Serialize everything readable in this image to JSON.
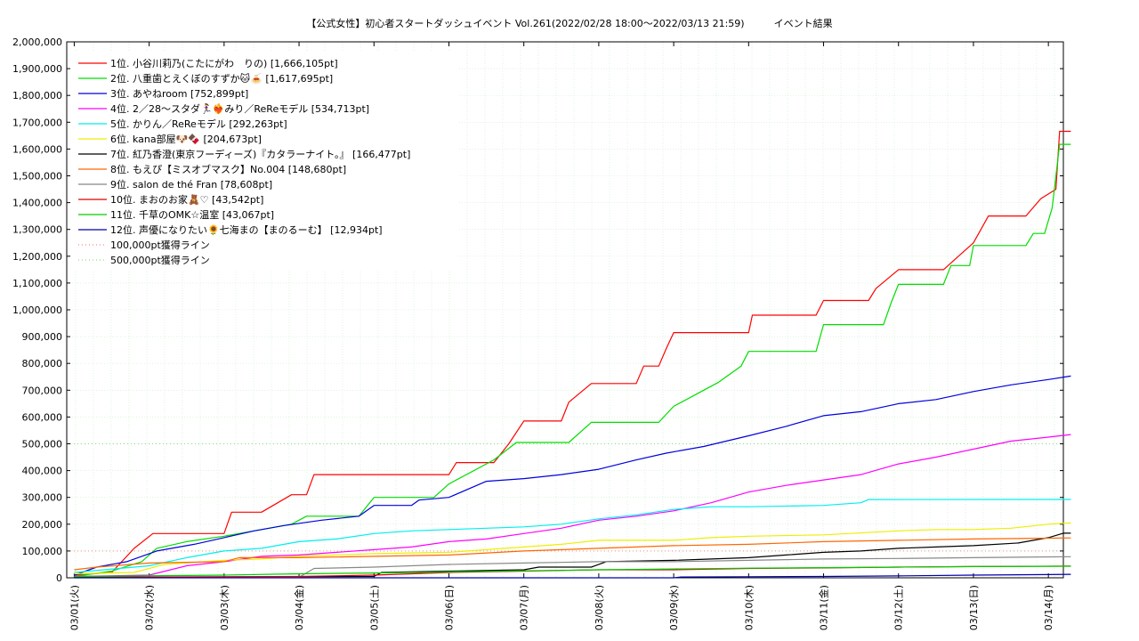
{
  "chart_data": {
    "type": "line",
    "title": "【公式女性】初心者スタートダッシュイベント Vol.261(2022/02/28 18:00～2022/03/13 21:59)　　　イベント結果",
    "ylim": [
      0,
      2000000
    ],
    "xlim": [
      "03/01",
      "03/14"
    ],
    "y_ticks": [
      "0",
      "100,000",
      "200,000",
      "300,000",
      "400,000",
      "500,000",
      "600,000",
      "700,000",
      "800,000",
      "900,000",
      "1,000,000",
      "1,100,000",
      "1,200,000",
      "1,300,000",
      "1,400,000",
      "1,500,000",
      "1,600,000",
      "1,700,000",
      "1,800,000",
      "1,900,000",
      "2,000,000"
    ],
    "x_ticks": [
      "03/01(火)",
      "03/02(水)",
      "03/03(木)",
      "03/04(金)",
      "03/05(土)",
      "03/06(日)",
      "03/07(月)",
      "03/08(火)",
      "03/09(水)",
      "03/10(木)",
      "03/11(金)",
      "03/12(土)",
      "03/13(日)",
      "03/14(月)"
    ],
    "grid": true,
    "legend_position": "top-left",
    "series": [
      {
        "name": "1位. 小谷川莉乃(こたにがわ　りの) [1,666,105pt]",
        "color": "#ff0000",
        "points": [
          [
            0,
            10000
          ],
          [
            0.5,
            20000
          ],
          [
            0.8,
            110000
          ],
          [
            1.05,
            165000
          ],
          [
            1.5,
            165000
          ],
          [
            2.0,
            165000
          ],
          [
            2.1,
            245000
          ],
          [
            2.5,
            245000
          ],
          [
            2.9,
            310000
          ],
          [
            3.1,
            310000
          ],
          [
            3.2,
            385000
          ],
          [
            4.0,
            385000
          ],
          [
            5.0,
            385000
          ],
          [
            5.1,
            430000
          ],
          [
            5.6,
            430000
          ],
          [
            5.8,
            500000
          ],
          [
            6.0,
            585000
          ],
          [
            6.5,
            585000
          ],
          [
            6.6,
            655000
          ],
          [
            6.9,
            725000
          ],
          [
            7.5,
            725000
          ],
          [
            7.6,
            790000
          ],
          [
            7.8,
            790000
          ],
          [
            7.9,
            855000
          ],
          [
            8.0,
            915000
          ],
          [
            9.0,
            915000
          ],
          [
            9.05,
            980000
          ],
          [
            9.9,
            980000
          ],
          [
            10.0,
            1035000
          ],
          [
            10.6,
            1035000
          ],
          [
            10.7,
            1080000
          ],
          [
            11.0,
            1150000
          ],
          [
            11.6,
            1150000
          ],
          [
            11.8,
            1200000
          ],
          [
            12.0,
            1250000
          ],
          [
            12.2,
            1350000
          ],
          [
            12.7,
            1350000
          ],
          [
            12.9,
            1415000
          ],
          [
            13.1,
            1450000
          ],
          [
            13.15,
            1666105
          ],
          [
            13.3,
            1666105
          ]
        ]
      },
      {
        "name": "2位. 八重歯とえくぼのすずか🐱🍝 [1,617,695pt]",
        "color": "#00dd00",
        "points": [
          [
            0,
            5000
          ],
          [
            0.5,
            25000
          ],
          [
            0.9,
            60000
          ],
          [
            1.1,
            110000
          ],
          [
            1.5,
            135000
          ],
          [
            2.0,
            155000
          ],
          [
            2.4,
            175000
          ],
          [
            2.9,
            200000
          ],
          [
            3.1,
            230000
          ],
          [
            3.8,
            230000
          ],
          [
            4.0,
            300000
          ],
          [
            4.8,
            300000
          ],
          [
            5.0,
            350000
          ],
          [
            5.6,
            440000
          ],
          [
            5.9,
            505000
          ],
          [
            6.6,
            505000
          ],
          [
            6.9,
            580000
          ],
          [
            7.8,
            580000
          ],
          [
            8.0,
            640000
          ],
          [
            8.4,
            700000
          ],
          [
            8.6,
            730000
          ],
          [
            8.9,
            790000
          ],
          [
            9.0,
            845000
          ],
          [
            9.9,
            845000
          ],
          [
            10.0,
            945000
          ],
          [
            10.8,
            945000
          ],
          [
            10.9,
            1025000
          ],
          [
            11.0,
            1095000
          ],
          [
            11.6,
            1095000
          ],
          [
            11.7,
            1165000
          ],
          [
            11.95,
            1165000
          ],
          [
            12.0,
            1240000
          ],
          [
            12.7,
            1240000
          ],
          [
            12.8,
            1285000
          ],
          [
            12.95,
            1285000
          ],
          [
            13.05,
            1380000
          ],
          [
            13.15,
            1617695
          ],
          [
            13.3,
            1617695
          ]
        ]
      },
      {
        "name": "3位. あやねroom [752,899pt]",
        "color": "#0000dd",
        "points": [
          [
            0,
            10000
          ],
          [
            0.3,
            40000
          ],
          [
            0.7,
            60000
          ],
          [
            1.1,
            100000
          ],
          [
            1.6,
            125000
          ],
          [
            2.0,
            150000
          ],
          [
            2.4,
            175000
          ],
          [
            2.8,
            195000
          ],
          [
            3.3,
            215000
          ],
          [
            3.8,
            230000
          ],
          [
            4.0,
            270000
          ],
          [
            4.5,
            270000
          ],
          [
            4.6,
            290000
          ],
          [
            5.0,
            300000
          ],
          [
            5.5,
            360000
          ],
          [
            6.0,
            370000
          ],
          [
            6.5,
            385000
          ],
          [
            7.0,
            405000
          ],
          [
            7.5,
            440000
          ],
          [
            7.9,
            465000
          ],
          [
            8.4,
            490000
          ],
          [
            9.0,
            530000
          ],
          [
            9.5,
            565000
          ],
          [
            10.0,
            605000
          ],
          [
            10.5,
            620000
          ],
          [
            11.0,
            650000
          ],
          [
            11.5,
            665000
          ],
          [
            12.0,
            695000
          ],
          [
            12.5,
            720000
          ],
          [
            13.0,
            740000
          ],
          [
            13.3,
            752899
          ]
        ]
      },
      {
        "name": "4位. 2／28〜スタダ🏃‍♀️❤️‍🔥みり／ReReモデル [534,713pt]",
        "color": "#ff00ff",
        "points": [
          [
            0,
            5000
          ],
          [
            1.0,
            10000
          ],
          [
            1.5,
            45000
          ],
          [
            2.0,
            60000
          ],
          [
            2.5,
            80000
          ],
          [
            3.0,
            85000
          ],
          [
            3.5,
            95000
          ],
          [
            4.0,
            105000
          ],
          [
            4.5,
            115000
          ],
          [
            5.0,
            135000
          ],
          [
            5.5,
            145000
          ],
          [
            6.0,
            165000
          ],
          [
            6.5,
            185000
          ],
          [
            7.0,
            215000
          ],
          [
            7.5,
            230000
          ],
          [
            8.0,
            250000
          ],
          [
            8.5,
            280000
          ],
          [
            9.0,
            320000
          ],
          [
            9.5,
            345000
          ],
          [
            10.0,
            365000
          ],
          [
            10.5,
            385000
          ],
          [
            11.0,
            425000
          ],
          [
            11.5,
            450000
          ],
          [
            12.0,
            480000
          ],
          [
            12.5,
            510000
          ],
          [
            13.0,
            525000
          ],
          [
            13.3,
            534713
          ]
        ]
      },
      {
        "name": "5位. かりん／ReReモデル [292,263pt]",
        "color": "#00eeee",
        "points": [
          [
            0,
            20000
          ],
          [
            0.6,
            35000
          ],
          [
            1.0,
            45000
          ],
          [
            1.5,
            75000
          ],
          [
            2.0,
            100000
          ],
          [
            2.5,
            110000
          ],
          [
            3.0,
            135000
          ],
          [
            3.5,
            145000
          ],
          [
            4.0,
            165000
          ],
          [
            4.5,
            175000
          ],
          [
            5.0,
            180000
          ],
          [
            5.5,
            185000
          ],
          [
            6.0,
            190000
          ],
          [
            6.5,
            200000
          ],
          [
            7.0,
            220000
          ],
          [
            7.5,
            235000
          ],
          [
            8.0,
            255000
          ],
          [
            8.5,
            265000
          ],
          [
            9.0,
            265000
          ],
          [
            10.0,
            270000
          ],
          [
            10.5,
            280000
          ],
          [
            10.6,
            292000
          ],
          [
            13.3,
            292263
          ]
        ]
      },
      {
        "name": "6位. kana部屋🐶🍫 [204,673pt]",
        "color": "#eeee00",
        "points": [
          [
            0,
            15000
          ],
          [
            0.8,
            20000
          ],
          [
            1.2,
            50000
          ],
          [
            2.0,
            65000
          ],
          [
            2.5,
            70000
          ],
          [
            3.0,
            80000
          ],
          [
            3.5,
            85000
          ],
          [
            4.0,
            90000
          ],
          [
            5.0,
            95000
          ],
          [
            5.5,
            105000
          ],
          [
            6.0,
            115000
          ],
          [
            6.5,
            125000
          ],
          [
            7.0,
            140000
          ],
          [
            8.0,
            140000
          ],
          [
            8.5,
            150000
          ],
          [
            9.0,
            155000
          ],
          [
            10.0,
            160000
          ],
          [
            11.0,
            175000
          ],
          [
            11.5,
            180000
          ],
          [
            12.0,
            180000
          ],
          [
            12.5,
            185000
          ],
          [
            13.0,
            200000
          ],
          [
            13.3,
            204673
          ]
        ]
      },
      {
        "name": "7位. 紅乃香澄(東京フーディーズ)『カタラーナイト。』 [166,477pt]",
        "color": "#000000",
        "points": [
          [
            0,
            2000
          ],
          [
            4.0,
            5000
          ],
          [
            4.1,
            20000
          ],
          [
            5.0,
            25000
          ],
          [
            6.0,
            30000
          ],
          [
            6.2,
            40000
          ],
          [
            6.9,
            40000
          ],
          [
            7.1,
            60000
          ],
          [
            8.0,
            65000
          ],
          [
            9.0,
            75000
          ],
          [
            9.5,
            85000
          ],
          [
            10.0,
            95000
          ],
          [
            10.5,
            100000
          ],
          [
            11.0,
            110000
          ],
          [
            11.5,
            115000
          ],
          [
            12.0,
            120000
          ],
          [
            12.6,
            130000
          ],
          [
            13.0,
            150000
          ],
          [
            13.2,
            166477
          ],
          [
            13.3,
            166477
          ]
        ]
      },
      {
        "name": "8位. もえぴ【ミスオブマスク】No.004 [148,680pt]",
        "color": "#ff6600",
        "points": [
          [
            0,
            30000
          ],
          [
            0.3,
            40000
          ],
          [
            1.0,
            55000
          ],
          [
            2.0,
            60000
          ],
          [
            2.2,
            75000
          ],
          [
            3.0,
            75000
          ],
          [
            4.0,
            80000
          ],
          [
            5.0,
            85000
          ],
          [
            6.0,
            100000
          ],
          [
            7.0,
            110000
          ],
          [
            8.0,
            120000
          ],
          [
            9.0,
            125000
          ],
          [
            10.0,
            135000
          ],
          [
            11.0,
            140000
          ],
          [
            12.0,
            145000
          ],
          [
            13.0,
            148000
          ],
          [
            13.3,
            148680
          ]
        ]
      },
      {
        "name": "9位. salon de thé Fran [78,608pt]",
        "color": "#888888",
        "points": [
          [
            0,
            2000
          ],
          [
            3.0,
            2000
          ],
          [
            3.2,
            35000
          ],
          [
            4.0,
            40000
          ],
          [
            5.0,
            50000
          ],
          [
            6.0,
            55000
          ],
          [
            7.0,
            60000
          ],
          [
            8.0,
            60000
          ],
          [
            9.0,
            65000
          ],
          [
            10.0,
            70000
          ],
          [
            11.0,
            72000
          ],
          [
            12.0,
            75000
          ],
          [
            13.3,
            78608
          ]
        ]
      },
      {
        "name": "10位. まおのお家🧸♡ [43,542pt]",
        "color": "#dd0000",
        "points": [
          [
            0,
            2000
          ],
          [
            3.0,
            5000
          ],
          [
            4.0,
            10000
          ],
          [
            5.0,
            20000
          ],
          [
            6.0,
            25000
          ],
          [
            7.0,
            30000
          ],
          [
            8.0,
            30000
          ],
          [
            9.0,
            35000
          ],
          [
            10.0,
            37000
          ],
          [
            11.0,
            40000
          ],
          [
            12.0,
            42000
          ],
          [
            13.3,
            43542
          ]
        ]
      },
      {
        "name": "11位. 千草のOMK☆温室 [43,067pt]",
        "color": "#00cc00",
        "points": [
          [
            0,
            5000
          ],
          [
            2.0,
            10000
          ],
          [
            3.0,
            15000
          ],
          [
            4.0,
            18000
          ],
          [
            5.0,
            22000
          ],
          [
            6.0,
            26000
          ],
          [
            7.0,
            30000
          ],
          [
            8.0,
            33000
          ],
          [
            9.0,
            36000
          ],
          [
            10.0,
            38000
          ],
          [
            11.0,
            40000
          ],
          [
            12.0,
            42000
          ],
          [
            13.3,
            43067
          ]
        ]
      },
      {
        "name": "12位. 声優になりたい🌻七海まの【まのるーむ】 [12,934pt]",
        "color": "#0000aa",
        "points": [
          [
            0,
            0
          ],
          [
            8.0,
            0
          ],
          [
            8.1,
            3000
          ],
          [
            9.0,
            4000
          ],
          [
            10.0,
            5000
          ],
          [
            11.0,
            7000
          ],
          [
            12.0,
            10000
          ],
          [
            13.0,
            12000
          ],
          [
            13.3,
            12934
          ]
        ]
      }
    ],
    "reference_lines": [
      {
        "name": "100,000pt獲得ライン",
        "value": 100000,
        "color": "#ff8888",
        "style": "dotted"
      },
      {
        "name": "500,000pt獲得ライン",
        "value": 500000,
        "color": "#88dd88",
        "style": "dotted"
      }
    ]
  }
}
